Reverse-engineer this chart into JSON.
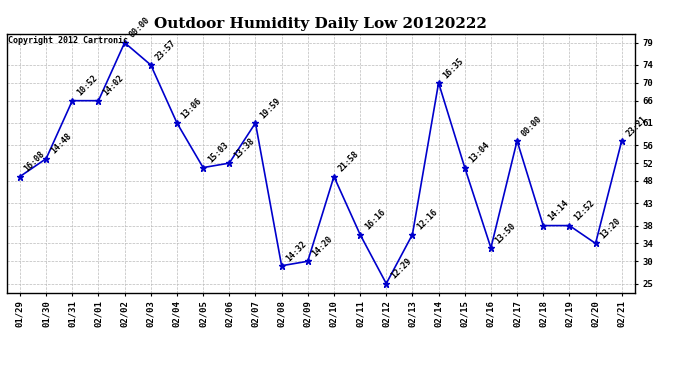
{
  "title": "Outdoor Humidity Daily Low 20120222",
  "copyright": "Copyright 2012 Cartronic",
  "x_labels": [
    "01/29",
    "01/30",
    "01/31",
    "02/01",
    "02/02",
    "02/03",
    "02/04",
    "02/05",
    "02/06",
    "02/07",
    "02/08",
    "02/09",
    "02/10",
    "02/11",
    "02/12",
    "02/13",
    "02/14",
    "02/15",
    "02/16",
    "02/17",
    "02/18",
    "02/19",
    "02/20",
    "02/21"
  ],
  "y_values": [
    49,
    53,
    66,
    66,
    79,
    74,
    61,
    51,
    52,
    61,
    29,
    30,
    49,
    36,
    25,
    36,
    70,
    51,
    33,
    57,
    38,
    38,
    34,
    57
  ],
  "point_labels": [
    "16:08",
    "14:48",
    "10:52",
    "14:02",
    "00:00",
    "23:57",
    "13:06",
    "15:03",
    "13:38",
    "19:59",
    "14:32",
    "14:20",
    "21:58",
    "16:16",
    "12:29",
    "12:16",
    "16:35",
    "13:04",
    "13:50",
    "00:00",
    "14:14",
    "12:52",
    "13:20",
    "23:21"
  ],
  "ylim": [
    23,
    81
  ],
  "yticks": [
    25,
    30,
    34,
    38,
    43,
    48,
    52,
    56,
    61,
    66,
    70,
    74,
    79
  ],
  "line_color": "#0000cc",
  "marker_color": "#0000cc",
  "grid_color": "#bbbbbb",
  "bg_color": "#ffffff",
  "title_fontsize": 11,
  "label_fontsize": 6.0,
  "tick_fontsize": 6.5,
  "copyright_fontsize": 6.0
}
